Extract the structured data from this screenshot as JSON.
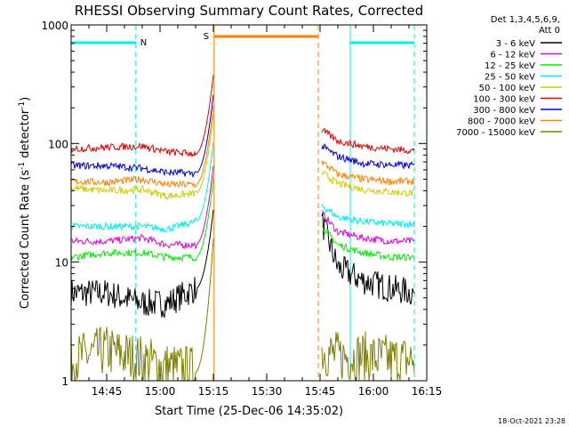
{
  "chart_data": {
    "type": "line",
    "title": "RHESSI Observing Summary Count Rates, Corrected",
    "xlabel": "Start Time (25-Dec-06 14:35:02)",
    "ylabel_main": "Corrected Count Rate (s",
    "ylabel_sup1": "-1",
    "ylabel_mid": " detector",
    "ylabel_sup2": "-1",
    "ylabel_end": ")",
    "y_scale": "log",
    "ylim": [
      1,
      1000
    ],
    "xlim_minutes": [
      0,
      100
    ],
    "x_ticks": [
      {
        "m": 10,
        "label": "14:45"
      },
      {
        "m": 25,
        "label": "15:00"
      },
      {
        "m": 40,
        "label": "15:15"
      },
      {
        "m": 55,
        "label": "15:30"
      },
      {
        "m": 70,
        "label": "15:45"
      },
      {
        "m": 85,
        "label": "16:00"
      },
      {
        "m": 100,
        "label": "16:15"
      }
    ],
    "y_ticks": [
      {
        "v": 1,
        "label": "1"
      },
      {
        "v": 10,
        "label": "10"
      },
      {
        "v": 100,
        "label": "100"
      },
      {
        "v": 1000,
        "label": "1000"
      }
    ],
    "legend_header": [
      "Det 1,3,4,5,6,9,",
      "Att 0"
    ],
    "series": [
      {
        "name": "3 - 6 keV",
        "color": "#000000",
        "pre": [
          5.5,
          5.5,
          4.5,
          4.5,
          6
        ],
        "post": [
          22,
          9,
          7,
          6,
          5.5
        ]
      },
      {
        "name": "6 - 12 keV",
        "color": "#e000e0",
        "pre": [
          15,
          15,
          16,
          14,
          14
        ],
        "post": [
          26,
          18,
          16,
          15,
          15
        ]
      },
      {
        "name": "12 - 25 keV",
        "color": "#00ee00",
        "pre": [
          11,
          12,
          12,
          11,
          11
        ],
        "post": [
          20,
          14,
          12,
          11,
          11
        ]
      },
      {
        "name": "25 - 50 keV",
        "color": "#00eeee",
        "pre": [
          20,
          20,
          20,
          19,
          22
        ],
        "post": [
          30,
          24,
          22,
          21,
          21
        ]
      },
      {
        "name": "50 - 100 keV",
        "color": "#cccc00",
        "pre": [
          42,
          40,
          41,
          36,
          38
        ],
        "post": [
          57,
          46,
          41,
          39,
          38
        ]
      },
      {
        "name": "100 - 300 keV",
        "color": "#dd0000",
        "pre": [
          90,
          93,
          95,
          85,
          82
        ],
        "post": [
          130,
          105,
          95,
          90,
          87
        ]
      },
      {
        "name": "300 - 800 keV",
        "color": "#0000dd",
        "pre": [
          65,
          65,
          62,
          57,
          56
        ],
        "post": [
          95,
          78,
          68,
          66,
          65
        ]
      },
      {
        "name": "800 - 7000 keV",
        "color": "#ff8000",
        "pre": [
          48,
          47,
          50,
          45,
          45
        ],
        "post": [
          70,
          55,
          50,
          48,
          48
        ]
      },
      {
        "name": "7000 - 15000 keV",
        "color": "#808000",
        "pre": [
          1.5,
          1.8,
          1.5,
          1.3,
          1.2
        ],
        "post": [
          1.8,
          1.6,
          1.6,
          1.5,
          1.5
        ]
      }
    ],
    "annotations": [
      {
        "label": "N",
        "color": "#00eeee"
      },
      {
        "label": "S",
        "color": "#ff8000"
      }
    ],
    "timestamp": "18-Oct-2021 23:28"
  }
}
